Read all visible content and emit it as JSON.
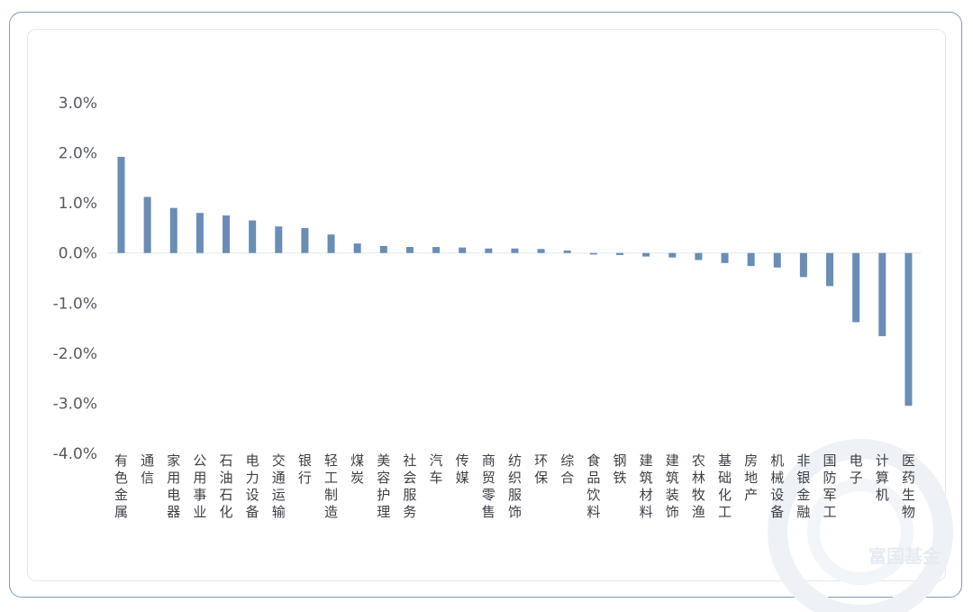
{
  "colors": {
    "bar": "#6a8db5",
    "frame": "#7f9bbd",
    "zero_line": "#e4e7ec",
    "watermark": "#e8edf4"
  },
  "watermark": {
    "text": "富国基金"
  },
  "chart_data": {
    "type": "bar",
    "title": "",
    "xlabel": "",
    "ylabel": "",
    "ylim": [
      -4.0,
      3.0
    ],
    "yticks": [
      "3.0%",
      "2.0%",
      "1.0%",
      "0.0%",
      "-1.0%",
      "-2.0%",
      "-3.0%",
      "-4.0%"
    ],
    "grid": false,
    "legend": "none",
    "categories": [
      "有色金属",
      "通信",
      "家用电器",
      "公用事业",
      "石油石化",
      "电力设备",
      "交通运输",
      "银行",
      "轻工制造",
      "煤炭",
      "美容护理",
      "社会服务",
      "汽车",
      "传媒",
      "商贸零售",
      "纺织服饰",
      "环保",
      "综合",
      "食品饮料",
      "钢铁",
      "建筑材料",
      "建筑装饰",
      "农林牧渔",
      "基础化工",
      "房地产",
      "机械设备",
      "非银金融",
      "国防军工",
      "电子",
      "计算机",
      "医药生物"
    ],
    "values": [
      1.92,
      1.12,
      0.9,
      0.8,
      0.75,
      0.65,
      0.53,
      0.5,
      0.37,
      0.19,
      0.14,
      0.12,
      0.12,
      0.11,
      0.09,
      0.09,
      0.08,
      0.05,
      -0.03,
      -0.04,
      -0.07,
      -0.09,
      -0.14,
      -0.2,
      -0.26,
      -0.29,
      -0.48,
      -0.66,
      -1.38,
      -1.66,
      -3.05
    ],
    "unit": "%"
  }
}
